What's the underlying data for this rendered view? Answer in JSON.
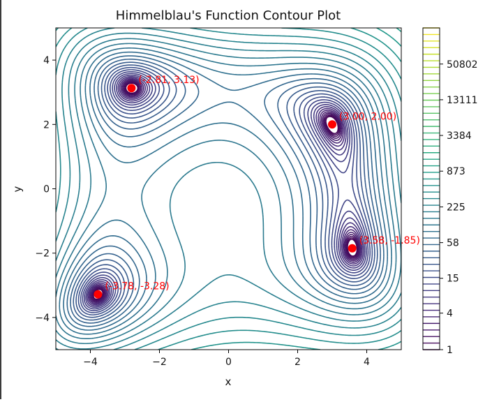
{
  "chart_data": {
    "type": "contour",
    "title": "Himmelblau's Function Contour Plot",
    "xlabel": "x",
    "ylabel": "y",
    "xlim": [
      -5,
      5
    ],
    "ylim": [
      -5,
      5
    ],
    "x_ticks": [
      -4,
      -2,
      0,
      2,
      4
    ],
    "y_ticks": [
      -4,
      -2,
      0,
      2,
      4
    ],
    "x_tick_labels": [
      "−4",
      "−2",
      "0",
      "2",
      "4"
    ],
    "y_tick_labels": [
      "−4",
      "−2",
      "0",
      "2",
      "4"
    ],
    "function": "(x^2 + y - 11)^2 + (x + y^2 - 7)^2",
    "contour_levels": "50 logarithmically spaced levels from 1 to 200000",
    "colormap": "viridis",
    "minima": [
      {
        "x": -2.81,
        "y": 3.13,
        "label": "(-2.81, 3.13)"
      },
      {
        "x": 3.0,
        "y": 2.0,
        "label": "(3.00, 2.00)"
      },
      {
        "x": 3.58,
        "y": -1.85,
        "label": "(3.58, -1.85)"
      },
      {
        "x": -3.78,
        "y": -3.28,
        "label": "(-3.78, -3.28)"
      }
    ],
    "marker_color": "#ff0000",
    "annotation_color": "#ff0000",
    "colorbar": {
      "scale": "log",
      "range": [
        1,
        200000
      ],
      "tick_values": [
        1,
        4,
        15,
        58,
        225,
        873,
        3384,
        13111,
        50802
      ],
      "tick_labels": [
        "1",
        "4",
        "15",
        "58",
        "225",
        "873",
        "3384",
        "13111",
        "50802"
      ]
    },
    "grid": false
  }
}
